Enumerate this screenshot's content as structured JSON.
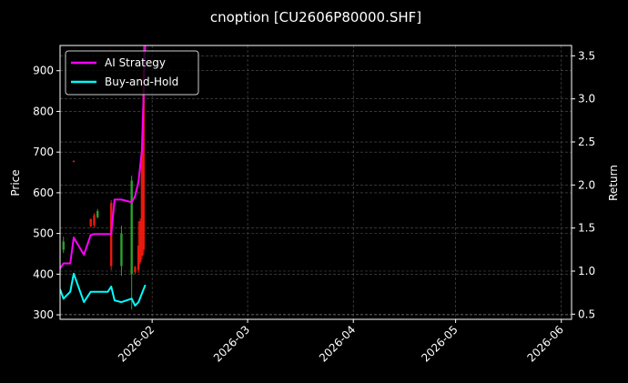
{
  "chart_data": {
    "type": "line",
    "title": "cnoption [CU2606P80000.SHF]",
    "ylabel": "Price",
    "y2label": "Return",
    "ylim": [
      289,
      962
    ],
    "y2lim": [
      0.44,
      3.62
    ],
    "xlim": [
      "2026-01-05",
      "2026-06-04"
    ],
    "yticks": [
      300,
      400,
      500,
      600,
      700,
      800,
      900
    ],
    "y2ticks": [
      "0.5",
      "1.0",
      "1.5",
      "2.0",
      "2.5",
      "3.0",
      "3.5"
    ],
    "xticks": [
      {
        "date": "2026-02-01",
        "label": "2026-02"
      },
      {
        "date": "2026-03-01",
        "label": "2026-03"
      },
      {
        "date": "2026-04-01",
        "label": "2026-04"
      },
      {
        "date": "2026-05-01",
        "label": "2026-05"
      },
      {
        "date": "2026-06-01",
        "label": "2026-06"
      }
    ],
    "grid": true,
    "legend_position": "top-left",
    "candles": [
      {
        "date": "2026-01-06",
        "open": 460,
        "high": 492,
        "low": 452,
        "close": 480
      },
      {
        "date": "2026-01-09",
        "open": 678,
        "high": 680,
        "low": 675,
        "close": 676
      },
      {
        "date": "2026-01-14",
        "open": 535,
        "high": 537,
        "low": 515,
        "close": 518
      },
      {
        "date": "2026-01-15",
        "open": 545,
        "high": 550,
        "low": 515,
        "close": 520
      },
      {
        "date": "2026-01-16",
        "open": 540,
        "high": 560,
        "low": 537,
        "close": 555
      },
      {
        "date": "2026-01-20",
        "open": 575,
        "high": 582,
        "low": 410,
        "close": 420
      },
      {
        "date": "2026-01-23",
        "open": 420,
        "high": 519,
        "low": 396,
        "close": 500
      },
      {
        "date": "2026-01-26",
        "open": 400,
        "high": 642,
        "low": 313,
        "close": 630
      },
      {
        "date": "2026-01-27",
        "open": 418,
        "high": 420,
        "low": 400,
        "close": 405
      },
      {
        "date": "2026-01-28",
        "open": 470,
        "high": 530,
        "low": 403,
        "close": 410
      },
      {
        "date": "2026-01-28T12",
        "open": 530,
        "high": 537,
        "low": 425,
        "close": 430
      },
      {
        "date": "2026-01-29",
        "open": 700,
        "high": 740,
        "low": 436,
        "close": 445
      },
      {
        "date": "2026-01-29T12",
        "open": 900,
        "high": 960,
        "low": 447,
        "close": 460
      }
    ],
    "series": [
      {
        "name": "AI Strategy",
        "color": "#ff00ff",
        "x": [
          "2026-01-05",
          "2026-01-06",
          "2026-01-08",
          "2026-01-09",
          "2026-01-12",
          "2026-01-14",
          "2026-01-15",
          "2026-01-19",
          "2026-01-20",
          "2026-01-21",
          "2026-01-23",
          "2026-01-26",
          "2026-01-27",
          "2026-01-28",
          "2026-01-29",
          "2026-01-30"
        ],
        "values": [
          1.03,
          1.09,
          1.09,
          1.39,
          1.19,
          1.42,
          1.43,
          1.43,
          1.43,
          1.83,
          1.83,
          1.8,
          1.87,
          2.04,
          2.4,
          3.7
        ]
      },
      {
        "name": "Buy-and-Hold",
        "color": "#00ffff",
        "x": [
          "2026-01-05",
          "2026-01-06",
          "2026-01-08",
          "2026-01-09",
          "2026-01-12",
          "2026-01-14",
          "2026-01-15",
          "2026-01-19",
          "2026-01-20",
          "2026-01-21",
          "2026-01-23",
          "2026-01-26",
          "2026-01-27",
          "2026-01-28",
          "2026-01-29",
          "2026-01-30"
        ],
        "values": [
          0.79,
          0.68,
          0.76,
          0.97,
          0.64,
          0.76,
          0.76,
          0.76,
          0.82,
          0.66,
          0.64,
          0.68,
          0.6,
          0.64,
          0.74,
          0.84
        ]
      }
    ],
    "up_color": "#2ca02c",
    "down_color": "#e8190f"
  }
}
